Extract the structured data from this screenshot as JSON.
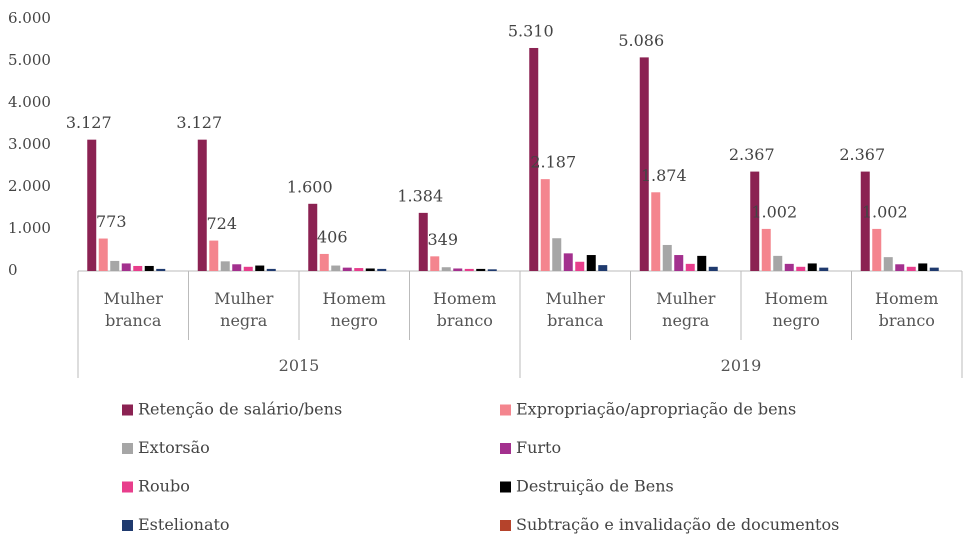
{
  "chart_data": {
    "type": "bar",
    "groups": [
      "2015",
      "2019"
    ],
    "categories": [
      "Mulher branca",
      "Mulher negra",
      "Homem negro",
      "Homem branco",
      "Mulher branca",
      "Mulher negra",
      "Homem negro",
      "Homem branco"
    ],
    "series": [
      {
        "name": "Retenção de salário/bens",
        "color": "#8b2252",
        "values": [
          3127,
          3127,
          1600,
          1384,
          5310,
          5086,
          2367,
          2367
        ],
        "value_labels": [
          "3.127",
          "3.127",
          "1.600",
          "1.384",
          "5.310",
          "5.086",
          "2.367",
          "2.367"
        ]
      },
      {
        "name": "Expropriação/apropriação de bens",
        "color": "#f4858e",
        "values": [
          773,
          724,
          406,
          349,
          2187,
          1874,
          1002,
          1002
        ],
        "value_labels": [
          "773",
          "724",
          "406",
          "349",
          "2.187",
          "1.874",
          "1.002",
          "1.002"
        ]
      },
      {
        "name": "Extorsão",
        "color": "#a6a6a6",
        "values": [
          240,
          230,
          130,
          90,
          780,
          620,
          360,
          330
        ]
      },
      {
        "name": "Furto",
        "color": "#a3308e",
        "values": [
          180,
          160,
          80,
          60,
          420,
          380,
          170,
          160
        ]
      },
      {
        "name": "Roubo",
        "color": "#e83e8c",
        "values": [
          120,
          100,
          70,
          50,
          220,
          170,
          100,
          100
        ]
      },
      {
        "name": "Destruição de Bens",
        "color": "#000000",
        "values": [
          120,
          130,
          60,
          50,
          380,
          360,
          180,
          180
        ]
      },
      {
        "name": "Estelionato",
        "color": "#1f3a6e",
        "values": [
          50,
          50,
          50,
          40,
          140,
          100,
          80,
          80
        ]
      },
      {
        "name": "Subtração e invalidação de documentos",
        "color": "#b5432b",
        "values": [
          0,
          0,
          0,
          0,
          0,
          0,
          0,
          0
        ]
      }
    ],
    "ylim": [
      0,
      6000
    ],
    "yticks": [
      0,
      {
        "value": 1000,
        "label": "1.000"
      },
      {
        "value": 2000,
        "label": "2.000"
      },
      {
        "value": 3000,
        "label": "3.000"
      },
      {
        "value": 4000,
        "label": "4.000"
      },
      {
        "value": 5000,
        "label": "5.000"
      },
      {
        "value": 6000,
        "label": "6.000"
      }
    ],
    "grid": false
  }
}
